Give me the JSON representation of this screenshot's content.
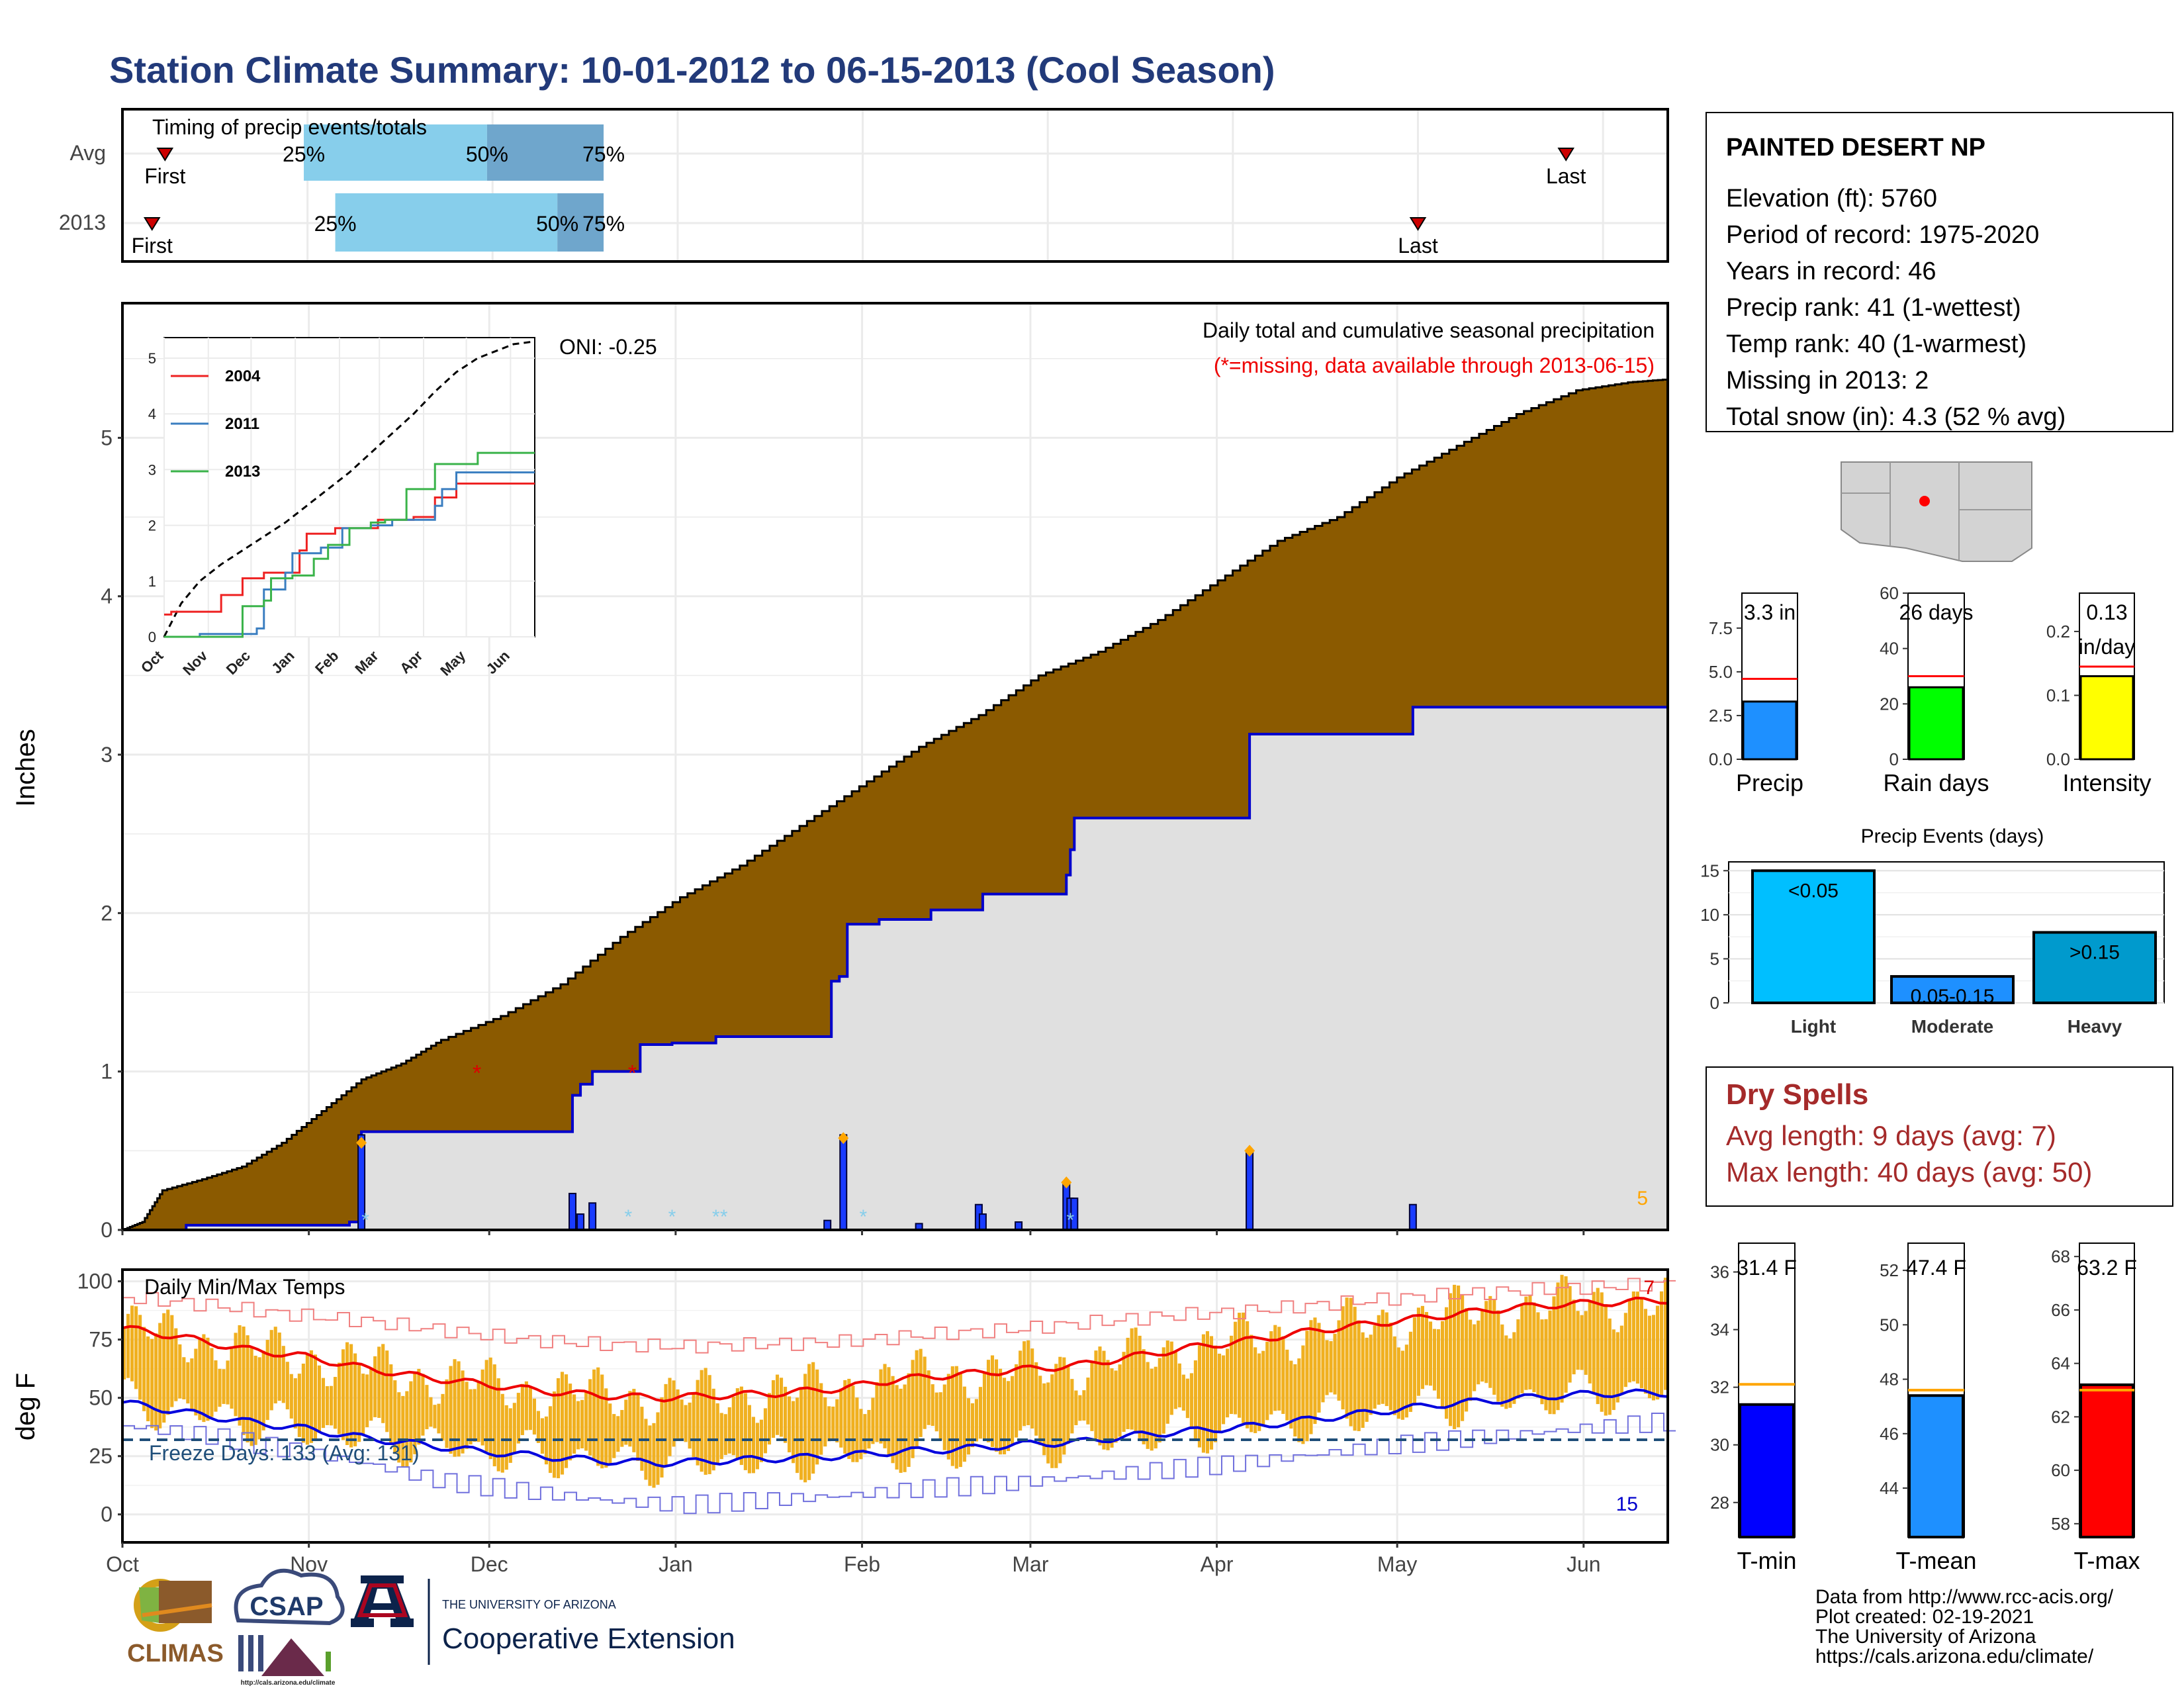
{
  "title": "Station Climate Summary: 10-01-2012 to 06-15-2013 (Cool Season)",
  "colors": {
    "title": "#223a7a",
    "precip_fill": "#8b5a00",
    "cum2013_fill": "#e0e0e0",
    "cum2013_line": "#0000cc",
    "daily_bar": "#1a3cff",
    "timing_light": "#87ceeb",
    "timing_dark": "#6fa6cc",
    "marker_red": "#cc0000",
    "orange": "#ffa500",
    "temp_bar": "#f0b020",
    "tmax_line": "#ee0000",
    "tmin_line": "#0000dd",
    "freeze_line": "#1f4e79",
    "dryspell": "#a52a2a",
    "cyan": "#00bfff",
    "green": "#00ff00",
    "yellow": "#ffff00",
    "dodger": "#1e90ff",
    "blue": "#0000ff",
    "red": "#ff0000",
    "gray_map": "#d3d3d3",
    "heavy": "#009acd"
  },
  "timing": {
    "label": "Timing of precip events/totals",
    "rows": [
      {
        "name": "Avg",
        "first_label": "First",
        "last_label": "Last",
        "first": 0.23,
        "p25": 0.98,
        "p50": 1.97,
        "p75": 2.6,
        "last": 7.8
      },
      {
        "name": "2013",
        "first_label": "First",
        "last_label": "Last",
        "first": 0.16,
        "p25": 1.15,
        "p50": 2.35,
        "p75": 2.6,
        "last": 7.0
      }
    ],
    "pct_labels": [
      "25%",
      "50%",
      "75%"
    ]
  },
  "precip": {
    "ylabel": "Inches",
    "title": "Daily total and cumulative seasonal precipitation",
    "missing_note": "(*=missing, data available through 2013-06-15)",
    "oni": "ONI: -0.25",
    "corner_count": "5",
    "yticks": [
      "0",
      "1",
      "2",
      "3",
      "4",
      "5"
    ],
    "ylim": [
      0,
      5.85
    ],
    "avg_cumulative": [
      [
        0,
        0
      ],
      [
        5,
        0.05
      ],
      [
        10,
        0.25
      ],
      [
        20,
        0.32
      ],
      [
        30,
        0.4
      ],
      [
        40,
        0.55
      ],
      [
        50,
        0.75
      ],
      [
        60,
        0.95
      ],
      [
        70,
        1.05
      ],
      [
        80,
        1.2
      ],
      [
        95,
        1.35
      ],
      [
        110,
        1.55
      ],
      [
        125,
        1.85
      ],
      [
        140,
        2.1
      ],
      [
        155,
        2.3
      ],
      [
        170,
        2.55
      ],
      [
        185,
        2.8
      ],
      [
        200,
        3.05
      ],
      [
        215,
        3.25
      ],
      [
        230,
        3.5
      ],
      [
        245,
        3.65
      ],
      [
        260,
        3.85
      ],
      [
        275,
        4.1
      ],
      [
        290,
        4.35
      ],
      [
        305,
        4.5
      ],
      [
        320,
        4.75
      ],
      [
        335,
        4.95
      ],
      [
        350,
        5.15
      ],
      [
        365,
        5.3
      ],
      [
        378,
        5.35
      ],
      [
        388,
        5.37
      ]
    ],
    "cum_2013": [
      [
        0,
        0
      ],
      [
        16,
        0.03
      ],
      [
        57,
        0.05
      ],
      [
        60,
        0.62
      ],
      [
        112,
        0.62
      ],
      [
        113,
        0.85
      ],
      [
        115,
        0.92
      ],
      [
        118,
        1.0
      ],
      [
        128,
        1.0
      ],
      [
        130,
        1.17
      ],
      [
        138,
        1.18
      ],
      [
        149,
        1.22
      ],
      [
        167,
        1.22
      ],
      [
        177,
        1.22
      ],
      [
        178,
        1.57
      ],
      [
        180,
        1.6
      ],
      [
        182,
        1.93
      ],
      [
        190,
        1.96
      ],
      [
        200,
        1.96
      ],
      [
        203,
        2.02
      ],
      [
        215,
        2.02
      ],
      [
        216,
        2.12
      ],
      [
        236,
        2.12
      ],
      [
        237,
        2.24
      ],
      [
        238,
        2.4
      ],
      [
        239,
        2.6
      ],
      [
        282,
        2.6
      ],
      [
        283,
        3.13
      ],
      [
        323,
        3.13
      ],
      [
        324,
        3.3
      ],
      [
        388,
        3.3
      ]
    ],
    "daily_bars": [
      [
        60,
        0.6
      ],
      [
        113,
        0.23
      ],
      [
        115,
        0.1
      ],
      [
        118,
        0.17
      ],
      [
        177,
        0.06
      ],
      [
        181,
        0.6
      ],
      [
        200,
        0.04
      ],
      [
        215,
        0.16
      ],
      [
        216,
        0.1
      ],
      [
        225,
        0.05
      ],
      [
        237,
        0.29
      ],
      [
        238,
        0.2
      ],
      [
        239,
        0.2
      ],
      [
        283,
        0.5
      ],
      [
        324,
        0.16
      ]
    ],
    "orange_points": [
      [
        60,
        0.55
      ],
      [
        181,
        0.58
      ],
      [
        237,
        0.3
      ],
      [
        283,
        0.5
      ]
    ],
    "missing_markers": [
      [
        89,
        1.0
      ],
      [
        128,
        1.0
      ]
    ],
    "snow_markers": [
      [
        61,
        0.08
      ],
      [
        127,
        0.1
      ],
      [
        138,
        0.1
      ],
      [
        149,
        0.1
      ],
      [
        151,
        0.1
      ],
      [
        186,
        0.1
      ],
      [
        238,
        0.08
      ]
    ],
    "xticks": [
      "Oct",
      "Nov",
      "Dec",
      "Jan",
      "Feb",
      "Mar",
      "Apr",
      "May",
      "Jun"
    ]
  },
  "inset": {
    "yticks": [
      "0",
      "1",
      "2",
      "3",
      "4",
      "5"
    ],
    "xticks": [
      "Oct",
      "Nov",
      "Dec",
      "Jan",
      "Feb",
      "Mar",
      "Apr",
      "May",
      "Jun"
    ],
    "legend": [
      {
        "name": "2004",
        "color": "#ee2222"
      },
      {
        "name": "2011",
        "color": "#3a7ec0"
      },
      {
        "name": "2013",
        "color": "#3ab34a"
      }
    ],
    "avg_dashed": [
      [
        0,
        0
      ],
      [
        12,
        0.6
      ],
      [
        25,
        1.0
      ],
      [
        40,
        1.3
      ],
      [
        55,
        1.55
      ],
      [
        70,
        1.8
      ],
      [
        85,
        2.05
      ],
      [
        100,
        2.35
      ],
      [
        115,
        2.65
      ],
      [
        130,
        2.95
      ],
      [
        145,
        3.3
      ],
      [
        160,
        3.65
      ],
      [
        175,
        4.0
      ],
      [
        190,
        4.4
      ],
      [
        205,
        4.75
      ],
      [
        220,
        5.0
      ],
      [
        235,
        5.15
      ],
      [
        245,
        5.25
      ],
      [
        260,
        5.3
      ]
    ],
    "series": [
      {
        "name": "2004",
        "points": [
          [
            0,
            0.4
          ],
          [
            5,
            0.4
          ],
          [
            5,
            0.45
          ],
          [
            40,
            0.45
          ],
          [
            40,
            0.75
          ],
          [
            55,
            0.75
          ],
          [
            55,
            1.05
          ],
          [
            70,
            1.05
          ],
          [
            70,
            1.15
          ],
          [
            95,
            1.15
          ],
          [
            95,
            1.55
          ],
          [
            100,
            1.55
          ],
          [
            100,
            1.85
          ],
          [
            120,
            1.85
          ],
          [
            120,
            1.95
          ],
          [
            150,
            1.95
          ],
          [
            150,
            2.1
          ],
          [
            175,
            2.1
          ],
          [
            175,
            2.15
          ],
          [
            190,
            2.15
          ],
          [
            190,
            2.5
          ],
          [
            205,
            2.5
          ],
          [
            205,
            2.75
          ],
          [
            260,
            2.75
          ]
        ]
      },
      {
        "name": "2011",
        "points": [
          [
            0,
            0
          ],
          [
            25,
            0
          ],
          [
            25,
            0.05
          ],
          [
            65,
            0.05
          ],
          [
            65,
            0.15
          ],
          [
            70,
            0.15
          ],
          [
            70,
            0.85
          ],
          [
            85,
            0.85
          ],
          [
            85,
            1.15
          ],
          [
            90,
            1.15
          ],
          [
            90,
            1.5
          ],
          [
            110,
            1.5
          ],
          [
            110,
            1.6
          ],
          [
            125,
            1.6
          ],
          [
            125,
            1.95
          ],
          [
            145,
            1.95
          ],
          [
            145,
            2.0
          ],
          [
            160,
            2.0
          ],
          [
            160,
            2.1
          ],
          [
            190,
            2.1
          ],
          [
            190,
            2.35
          ],
          [
            195,
            2.35
          ],
          [
            195,
            2.65
          ],
          [
            205,
            2.65
          ],
          [
            205,
            2.95
          ],
          [
            260,
            2.95
          ]
        ]
      },
      {
        "name": "2013",
        "points": [
          [
            0,
            0
          ],
          [
            55,
            0
          ],
          [
            55,
            0.55
          ],
          [
            70,
            0.55
          ],
          [
            70,
            0.65
          ],
          [
            75,
            0.65
          ],
          [
            75,
            1.05
          ],
          [
            90,
            1.05
          ],
          [
            90,
            1.1
          ],
          [
            105,
            1.1
          ],
          [
            105,
            1.4
          ],
          [
            115,
            1.4
          ],
          [
            115,
            1.65
          ],
          [
            130,
            1.65
          ],
          [
            130,
            1.95
          ],
          [
            145,
            1.95
          ],
          [
            145,
            2.05
          ],
          [
            155,
            2.05
          ],
          [
            155,
            2.1
          ],
          [
            170,
            2.1
          ],
          [
            170,
            2.65
          ],
          [
            190,
            2.65
          ],
          [
            190,
            3.1
          ],
          [
            220,
            3.1
          ],
          [
            220,
            3.3
          ],
          [
            260,
            3.3
          ]
        ]
      }
    ]
  },
  "temps": {
    "label": "Daily Min/Max Temps",
    "ylabel": "deg F",
    "yticks": [
      "0",
      "25",
      "50",
      "75",
      "100"
    ],
    "ylim": [
      -12,
      105
    ],
    "freeze_label": "Freeze Days: 133 (Avg: 131)",
    "corner_top": "7",
    "corner_bottom": "15",
    "xticks": [
      "Oct",
      "Nov",
      "Dec",
      "Jan",
      "Feb",
      "Mar",
      "Apr",
      "May",
      "Jun"
    ],
    "avg_max": [
      [
        0,
        80
      ],
      [
        15,
        76
      ],
      [
        30,
        71
      ],
      [
        45,
        68
      ],
      [
        60,
        63
      ],
      [
        75,
        59
      ],
      [
        90,
        56
      ],
      [
        105,
        53
      ],
      [
        120,
        51
      ],
      [
        135,
        50
      ],
      [
        150,
        51
      ],
      [
        165,
        52
      ],
      [
        180,
        54
      ],
      [
        195,
        58
      ],
      [
        210,
        60
      ],
      [
        225,
        62
      ],
      [
        240,
        64
      ],
      [
        255,
        68
      ],
      [
        270,
        72
      ],
      [
        285,
        75
      ],
      [
        300,
        79
      ],
      [
        315,
        82
      ],
      [
        330,
        85
      ],
      [
        345,
        88
      ],
      [
        360,
        90
      ],
      [
        375,
        91
      ],
      [
        388,
        92
      ]
    ],
    "avg_min": [
      [
        0,
        48
      ],
      [
        15,
        44
      ],
      [
        30,
        40
      ],
      [
        45,
        37
      ],
      [
        60,
        33
      ],
      [
        75,
        30
      ],
      [
        90,
        27
      ],
      [
        105,
        25
      ],
      [
        120,
        23
      ],
      [
        135,
        22
      ],
      [
        150,
        23
      ],
      [
        165,
        24
      ],
      [
        180,
        25
      ],
      [
        195,
        27
      ],
      [
        210,
        28
      ],
      [
        225,
        30
      ],
      [
        240,
        31
      ],
      [
        255,
        34
      ],
      [
        270,
        36
      ],
      [
        285,
        38
      ],
      [
        300,
        41
      ],
      [
        315,
        44
      ],
      [
        330,
        47
      ],
      [
        345,
        49
      ],
      [
        360,
        51
      ],
      [
        375,
        52
      ],
      [
        388,
        52
      ]
    ],
    "rec_max": [
      [
        0,
        93
      ],
      [
        20,
        90
      ],
      [
        40,
        86
      ],
      [
        60,
        83
      ],
      [
        80,
        79
      ],
      [
        100,
        75
      ],
      [
        120,
        73
      ],
      [
        140,
        72
      ],
      [
        160,
        73
      ],
      [
        180,
        74
      ],
      [
        200,
        77
      ],
      [
        220,
        79
      ],
      [
        240,
        82
      ],
      [
        260,
        85
      ],
      [
        280,
        87
      ],
      [
        300,
        90
      ],
      [
        320,
        93
      ],
      [
        340,
        95
      ],
      [
        360,
        97
      ],
      [
        388,
        99
      ]
    ],
    "rec_min": [
      [
        0,
        38
      ],
      [
        20,
        34
      ],
      [
        40,
        28
      ],
      [
        60,
        22
      ],
      [
        80,
        14
      ],
      [
        100,
        10
      ],
      [
        120,
        6
      ],
      [
        140,
        4
      ],
      [
        160,
        6
      ],
      [
        180,
        8
      ],
      [
        200,
        11
      ],
      [
        220,
        13
      ],
      [
        240,
        16
      ],
      [
        260,
        19
      ],
      [
        280,
        22
      ],
      [
        300,
        26
      ],
      [
        320,
        30
      ],
      [
        340,
        33
      ],
      [
        360,
        36
      ],
      [
        388,
        40
      ]
    ],
    "freeze_value": 32
  },
  "station": {
    "name": "PAINTED DESERT NP",
    "lines": [
      "Elevation (ft): 5760",
      "Period of record: 1975-2020",
      "Years in record: 46",
      "Precip rank: 41 (1-wettest)",
      "Temp rank: 40 (1-warmest)",
      "Missing in 2013: 2",
      "Total snow (in): 4.3 (52 % avg)"
    ]
  },
  "mini_bars": [
    {
      "label": "Precip",
      "value": 3.3,
      "avg": 4.6,
      "ylim": [
        0,
        9.5
      ],
      "yticks": [
        "0.0",
        "2.5",
        "5.0",
        "7.5"
      ],
      "tickvals": [
        0,
        2.5,
        5,
        7.5
      ],
      "text": [
        "3.3 in"
      ],
      "color": "#1e90ff"
    },
    {
      "label": "Rain days",
      "value": 26,
      "avg": 30,
      "ylim": [
        0,
        60
      ],
      "yticks": [
        "0",
        "20",
        "40",
        "60"
      ],
      "tickvals": [
        0,
        20,
        40,
        60
      ],
      "text": [
        "26 days"
      ],
      "color": "#00ff00"
    },
    {
      "label": "Intensity",
      "value": 0.13,
      "avg": 0.145,
      "ylim": [
        0,
        0.26
      ],
      "yticks": [
        "0.0",
        "0.1",
        "0.2"
      ],
      "tickvals": [
        0,
        0.1,
        0.2
      ],
      "text": [
        "0.13",
        "in/day"
      ],
      "color": "#ffff00"
    }
  ],
  "events": {
    "title": "Precip Events (days)",
    "categories": [
      "Light",
      "Moderate",
      "Heavy"
    ],
    "values": [
      15,
      3,
      8
    ],
    "labels": [
      "<0.05",
      "0.05-0.15",
      ">0.15"
    ],
    "yticks": [
      "0",
      "5",
      "10",
      "15"
    ],
    "ylim": [
      0,
      16
    ]
  },
  "dry_spells": {
    "title": "Dry Spells",
    "avg": "Avg length: 9 days (avg: 7)",
    "max": "Max length: 40 days (avg: 50)"
  },
  "temp_bars": [
    {
      "label": "T-min",
      "value": 31.4,
      "avg": 32.1,
      "ylim": [
        26.8,
        37
      ],
      "yticks": [
        "28",
        "30",
        "32",
        "34",
        "36"
      ],
      "tickvals": [
        28,
        30,
        32,
        34,
        36
      ],
      "text": "31.4 F",
      "color": "#0000ff"
    },
    {
      "label": "T-mean",
      "value": 47.4,
      "avg": 47.6,
      "ylim": [
        42.2,
        53
      ],
      "yticks": [
        "44",
        "46",
        "48",
        "50",
        "52"
      ],
      "tickvals": [
        44,
        46,
        48,
        50,
        52
      ],
      "text": "47.4 F",
      "color": "#1e90ff"
    },
    {
      "label": "T-max",
      "value": 63.2,
      "avg": 63.0,
      "ylim": [
        57.5,
        68.5
      ],
      "yticks": [
        "58",
        "60",
        "62",
        "64",
        "66",
        "68"
      ],
      "tickvals": [
        58,
        60,
        62,
        64,
        66,
        68
      ],
      "text": "63.2 F",
      "color": "#ff0000"
    }
  ],
  "footer": {
    "lines": [
      "Data from http://www.rcc-acis.org/",
      "Plot created: 02-19-2021",
      "The University of Arizona",
      "https://cals.arizona.edu/climate/"
    ],
    "climas": "CLIMAS",
    "csap": "CSAP",
    "csap_url": "http://cals.arizona.edu/climate",
    "ua_small": "THE UNIVERSITY OF ARIZONA",
    "ua_big": "Cooperative Extension"
  }
}
